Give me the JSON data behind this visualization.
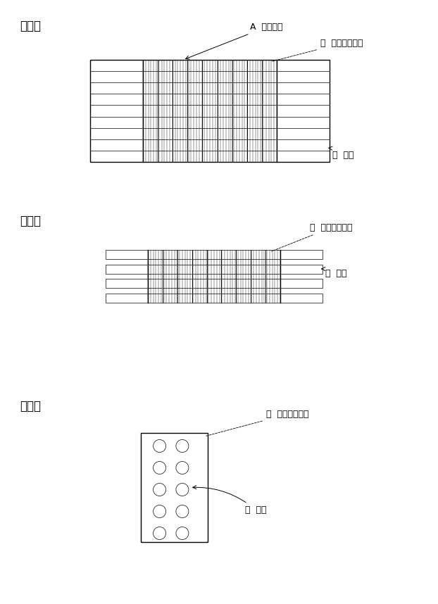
{
  "bg_color": "#ffffff",
  "line_color": "#000000",
  "label_a": "（ａ）",
  "label_b": "（ｂ）",
  "label_c": "（ｃ）",
  "annotation_A": "A  熱交換器",
  "annotation_1a": "１  アルミフィン",
  "annotation_2a": "２  配管",
  "annotation_1b": "１  アルミフィン",
  "annotation_2b": "２  配管",
  "annotation_1c": "１  アルミフィン",
  "annotation_2c": "２  配管",
  "font_size_label": 12,
  "font_size_annot": 9
}
